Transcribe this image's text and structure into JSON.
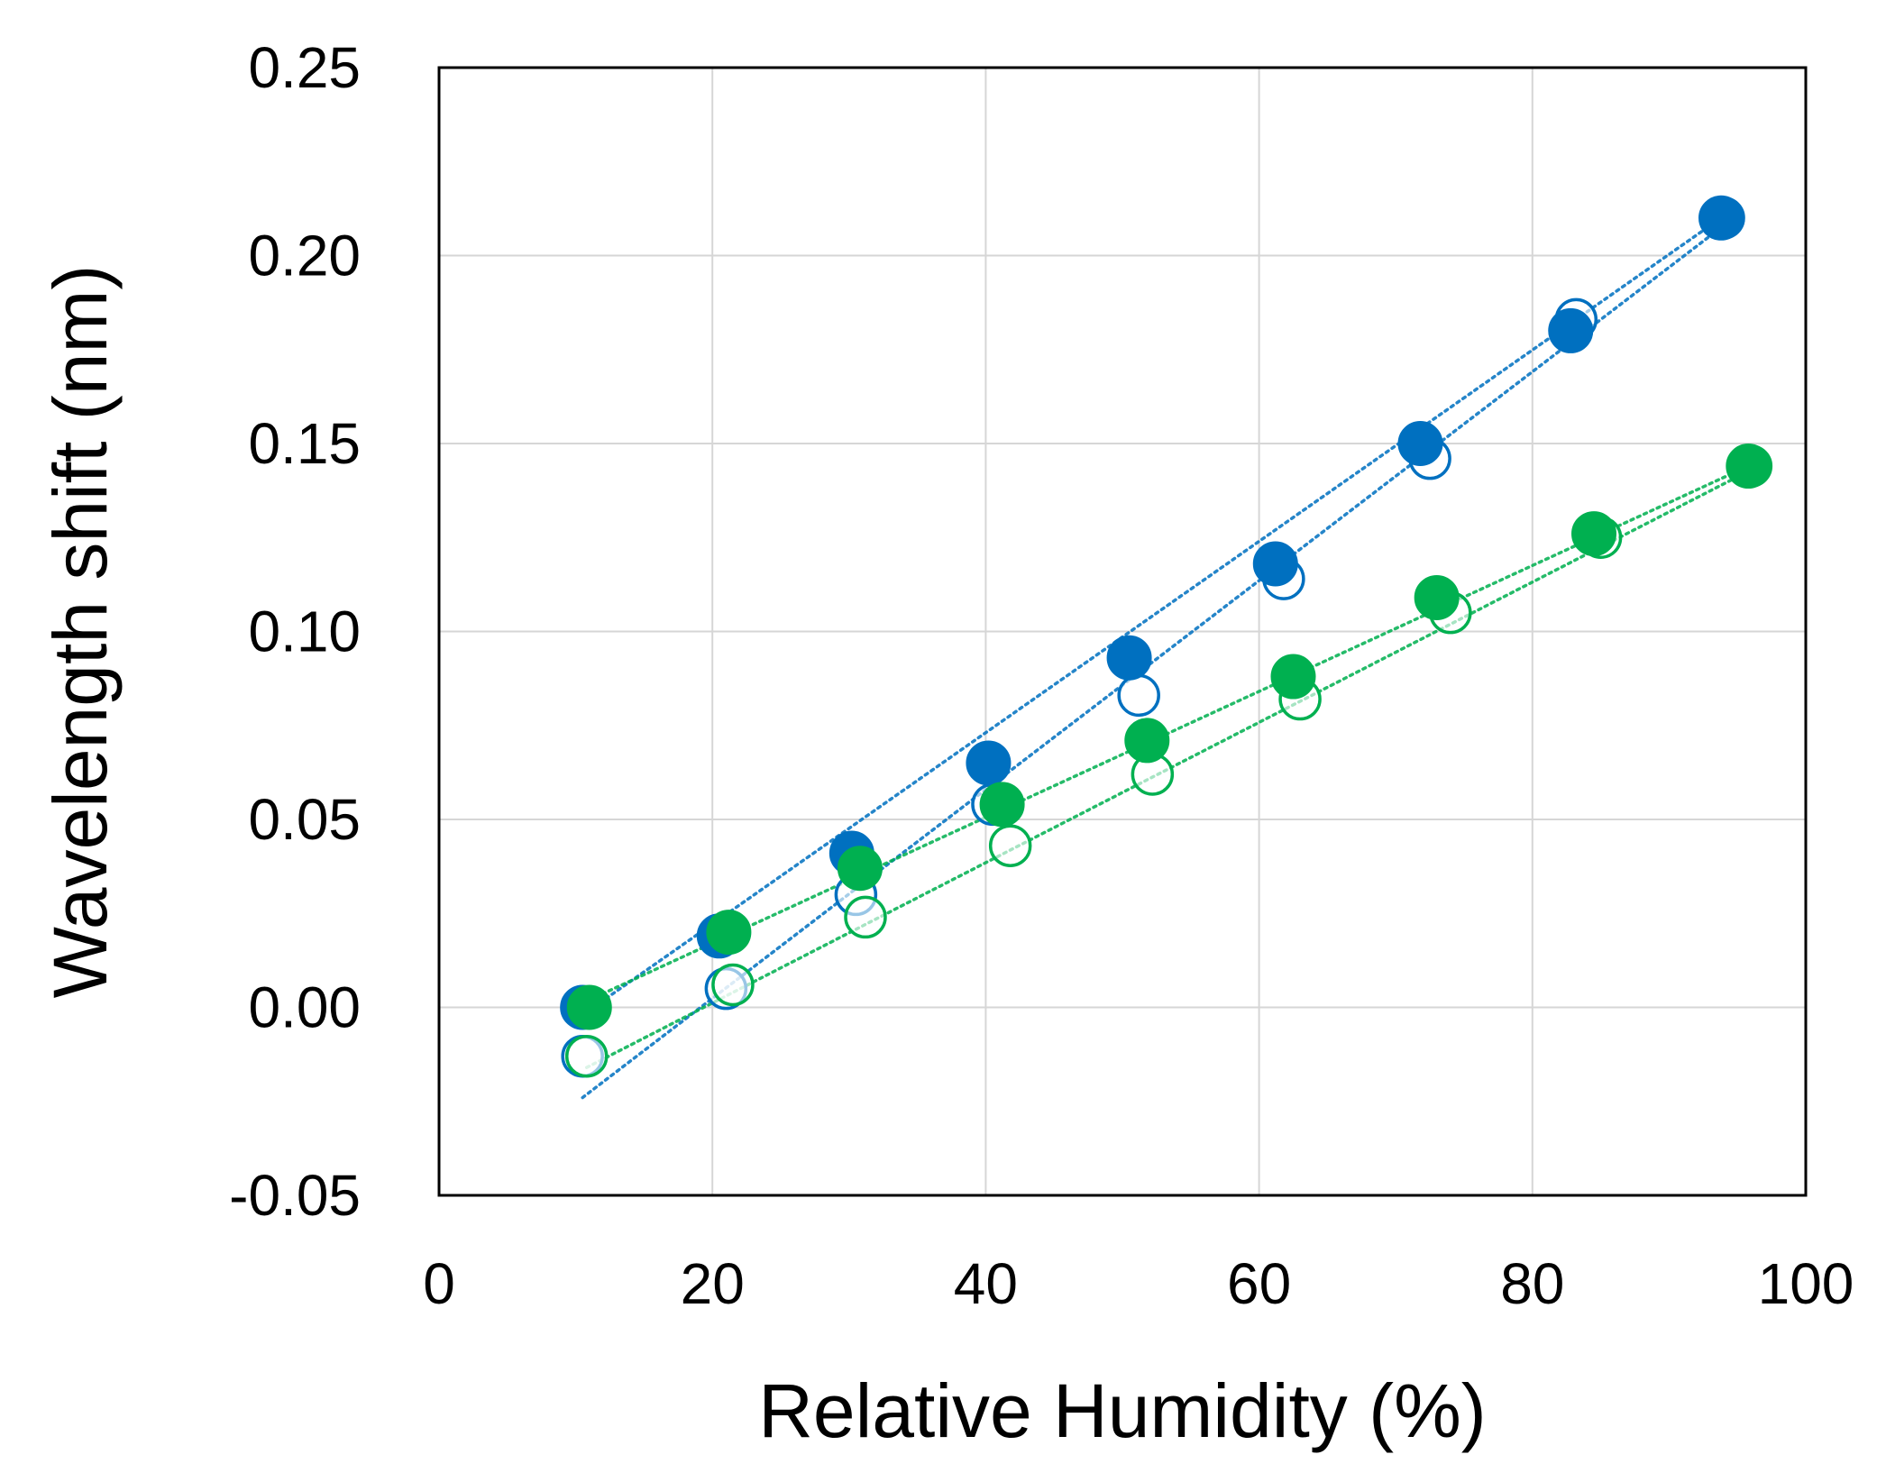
{
  "chart_data": {
    "type": "scatter",
    "title": "",
    "xlabel": "Relative Humidity (%)",
    "ylabel": "Wavelength shift (nm)",
    "xlim": [
      0,
      100
    ],
    "ylim": [
      -0.05,
      0.25
    ],
    "x_ticks": [
      0,
      20,
      40,
      60,
      80,
      100
    ],
    "x_tick_labels": [
      "0",
      "20",
      "40",
      "60",
      "80",
      "100"
    ],
    "y_ticks": [
      -0.05,
      0.0,
      0.05,
      0.1,
      0.15,
      0.2,
      0.25
    ],
    "y_tick_labels": [
      "-0.05",
      "0.00",
      "0.05",
      "0.10",
      "0.15",
      "0.20",
      "0.25"
    ],
    "grid": true,
    "legend": "none",
    "series": [
      {
        "name": "blue-filled",
        "color": "#0070C0",
        "marker": "filled-circle",
        "x": [
          10.5,
          20.5,
          30.2,
          40.2,
          50.5,
          61.2,
          71.8,
          82.8,
          93.8
        ],
        "y": [
          0.0,
          0.019,
          0.041,
          0.065,
          0.093,
          0.118,
          0.15,
          0.18,
          0.21
        ],
        "trend": {
          "x": [
            10.5,
            93.8
          ],
          "y": [
            -0.002,
            0.21
          ]
        }
      },
      {
        "name": "blue-open",
        "color": "#0070C0",
        "marker": "open-circle",
        "x": [
          10.5,
          21.0,
          30.5,
          40.5,
          51.2,
          61.8,
          72.5,
          83.2,
          94.0
        ],
        "y": [
          -0.013,
          0.005,
          0.03,
          0.054,
          0.083,
          0.114,
          0.146,
          0.183,
          0.21
        ],
        "trend": {
          "x": [
            10.5,
            94.0
          ],
          "y": [
            -0.024,
            0.208
          ]
        }
      },
      {
        "name": "green-filled",
        "color": "#00B050",
        "marker": "filled-circle",
        "x": [
          11.0,
          21.2,
          30.8,
          41.2,
          51.8,
          62.5,
          73.0,
          84.5,
          95.8
        ],
        "y": [
          0.0,
          0.02,
          0.037,
          0.054,
          0.071,
          0.088,
          0.109,
          0.126,
          0.144
        ],
        "trend": {
          "x": [
            11.0,
            95.8
          ],
          "y": [
            0.002,
            0.144
          ]
        }
      },
      {
        "name": "green-open",
        "color": "#00B050",
        "marker": "open-circle",
        "x": [
          10.8,
          21.5,
          31.2,
          41.8,
          52.2,
          63.0,
          74.0,
          85.0,
          96.0
        ],
        "y": [
          -0.013,
          0.006,
          0.024,
          0.043,
          0.062,
          0.082,
          0.105,
          0.125,
          0.144
        ],
        "trend": {
          "x": [
            10.8,
            96.0
          ],
          "y": [
            -0.016,
            0.143
          ]
        }
      }
    ]
  }
}
